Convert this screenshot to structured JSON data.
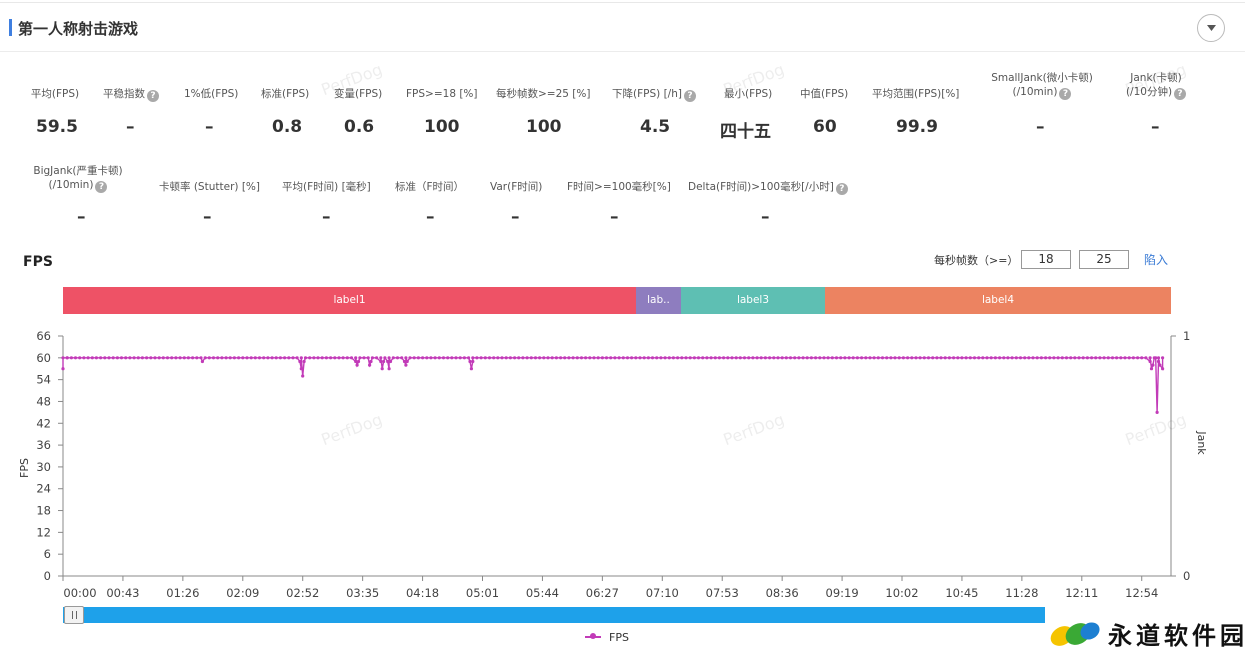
{
  "title": "第一人称射击游戏",
  "icons": {
    "collapse": "chevron-down-icon",
    "help": "question-circle-icon",
    "scroll_handle": "grip-icon"
  },
  "stats_row1": [
    {
      "label": "平均(FPS)",
      "value": "59.5",
      "help": false
    },
    {
      "label": "平稳指数",
      "value": "–",
      "help": true
    },
    {
      "label": "1%低(FPS)",
      "value": "–",
      "help": false
    },
    {
      "label": "标准(FPS)",
      "value": "0.8",
      "help": false
    },
    {
      "label": "变量(FPS)",
      "value": "0.6",
      "help": false
    },
    {
      "label": "FPS>=18 [%]",
      "value": "100",
      "help": false
    },
    {
      "label": "每秒帧数>=25 [%]",
      "value": "100",
      "help": false
    },
    {
      "label": "下降(FPS) [/h]",
      "value": "4.5",
      "help": true
    },
    {
      "label": "最小(FPS)",
      "value": "四十五",
      "help": false
    },
    {
      "label": "中值(FPS)",
      "value": "60",
      "help": false
    },
    {
      "label": "平均范围(FPS)[%]",
      "value": "99.9",
      "help": false
    },
    {
      "label": "SmallJank(微小卡顿)",
      "label2": "(/10min)",
      "value": "–",
      "help": true
    },
    {
      "label": "Jank(卡顿)",
      "label2": "(/10分钟)",
      "value": "–",
      "help": true
    }
  ],
  "stats_row2": [
    {
      "label": "BigJank(严重卡顿)",
      "label2": "(/10min)",
      "value": "–",
      "help": true
    },
    {
      "label": "卡顿率 (Stutter) [%]",
      "value": "–",
      "help": false
    },
    {
      "label": "平均(F时间) [毫秒]",
      "value": "–",
      "help": false
    },
    {
      "label": "标准（F时间）",
      "value": "–",
      "help": false
    },
    {
      "label": "Var(F时间)",
      "value": "–",
      "help": false
    },
    {
      "label": "F时间>=100毫秒[%]",
      "value": "–",
      "help": false
    },
    {
      "label": "Delta(F时间)>100毫秒[/小时]",
      "value": "–",
      "help": true
    }
  ],
  "fps_section": {
    "title": "FPS",
    "threshold_label": "每秒帧数（>=）",
    "threshold_1": "18",
    "threshold_2": "25",
    "import_label": "陷入"
  },
  "label_bands": [
    {
      "label": "label1",
      "color": "#ee5266"
    },
    {
      "label": "lab..",
      "color": "#8e7dbf"
    },
    {
      "label": "label3",
      "color": "#5ebfb3"
    },
    {
      "label": "label4",
      "color": "#ec8361"
    }
  ],
  "watermark": "PerfDog",
  "legend_label": "FPS",
  "logo_text": "永道软件园",
  "chart_data": {
    "type": "line",
    "y_left_label": "FPS",
    "y_right_label": "Jank",
    "y_left_ticks": [
      "66",
      "60",
      "54",
      "48",
      "42",
      "36",
      "30",
      "24",
      "18",
      "12",
      "6",
      "0"
    ],
    "y_right_ticks": [
      "1",
      "0"
    ],
    "ylim": [
      0,
      66
    ],
    "x_ticks": [
      "00:00",
      "00:43",
      "01:26",
      "02:09",
      "02:52",
      "03:35",
      "04:18",
      "05:01",
      "05:44",
      "06:27",
      "07:10",
      "07:53",
      "08:36",
      "09:19",
      "10:02",
      "10:45",
      "11:28",
      "12:11",
      "12:54"
    ],
    "x_range_seconds": [
      0,
      795
    ],
    "grid": false,
    "legend": "bottom-center",
    "series": [
      {
        "name": "FPS",
        "color": "#c23bb8",
        "baseline": 59.5,
        "points": [
          [
            0,
            57
          ],
          [
            3,
            60
          ],
          [
            100,
            59
          ],
          [
            170,
            59
          ],
          [
            171,
            57
          ],
          [
            172,
            55
          ],
          [
            173,
            59
          ],
          [
            210,
            59
          ],
          [
            211,
            58
          ],
          [
            212,
            59
          ],
          [
            220,
            58
          ],
          [
            221,
            59
          ],
          [
            228,
            59
          ],
          [
            229,
            57
          ],
          [
            230,
            59
          ],
          [
            233,
            59
          ],
          [
            234,
            57
          ],
          [
            235,
            59
          ],
          [
            245,
            59
          ],
          [
            246,
            58
          ],
          [
            247,
            59
          ],
          [
            292,
            59
          ],
          [
            293,
            57
          ],
          [
            294,
            59
          ],
          [
            780,
            59
          ],
          [
            781,
            57
          ],
          [
            782,
            58
          ],
          [
            784,
            60
          ],
          [
            785,
            45
          ],
          [
            786,
            59
          ],
          [
            787,
            58
          ],
          [
            789,
            57
          ]
        ]
      }
    ]
  }
}
